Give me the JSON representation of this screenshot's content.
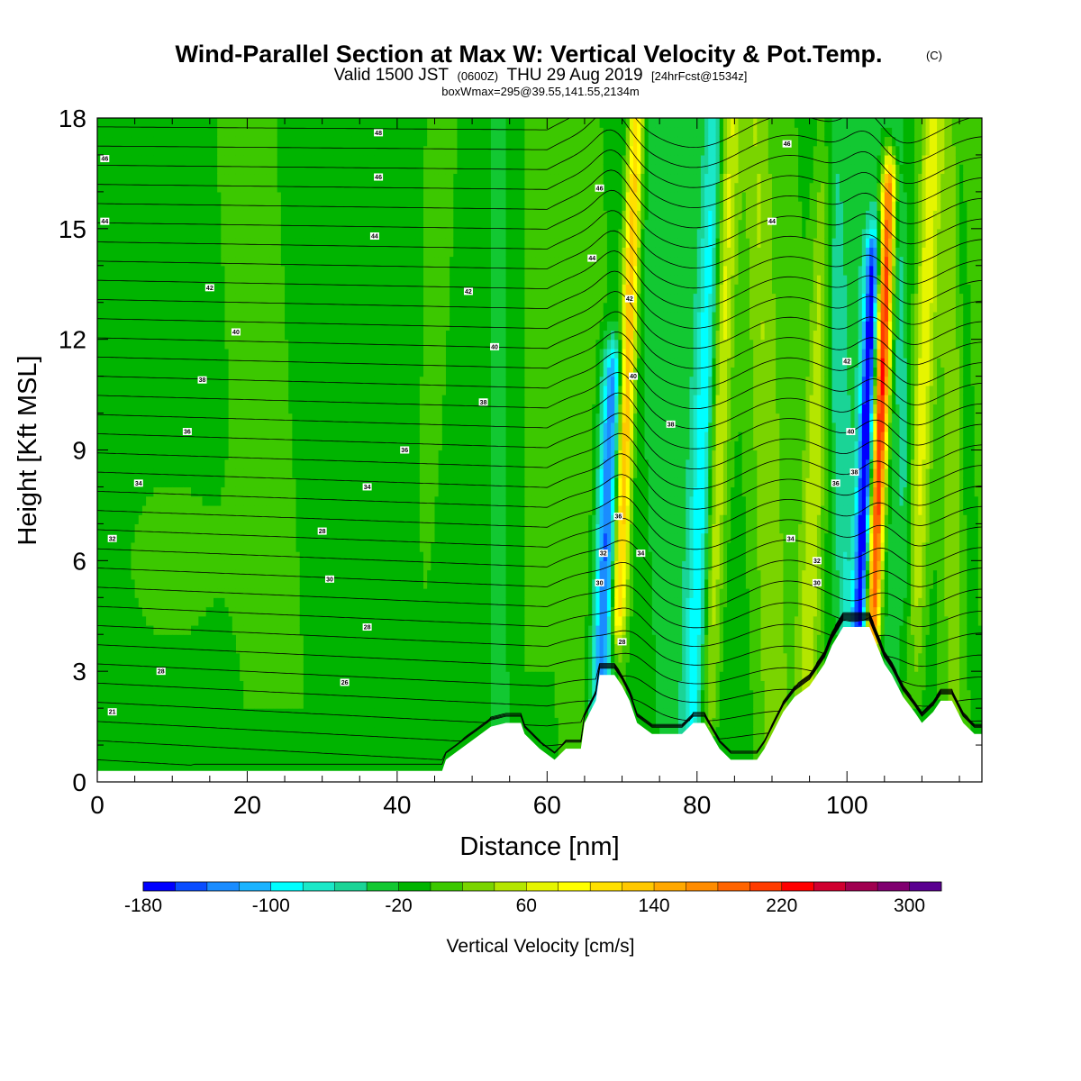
{
  "title": {
    "main": "Wind-Parallel Section at Max W: Vertical Velocity & Pot.Temp.",
    "copyright": "(C)",
    "valid_prefix": "Valid 1500 JST",
    "valid_utc": "(0600Z)",
    "valid_date": "THU 29 Aug 2019",
    "forecast": "[24hrFcst@1534z]",
    "box_info": "boxWmax=295@39.55,141.55,2134m"
  },
  "chart_data": {
    "type": "heatmap",
    "xlabel": "Distance [nm]",
    "ylabel": "Height [Kft MSL]",
    "xlim": [
      0,
      118
    ],
    "ylim": [
      0,
      18
    ],
    "x_ticks": [
      "0",
      "20",
      "40",
      "60",
      "80",
      "100"
    ],
    "y_ticks": [
      "0",
      "3",
      "6",
      "9",
      "12",
      "15",
      "18"
    ],
    "x_tick_values": [
      0,
      20,
      40,
      60,
      80,
      100
    ],
    "y_tick_values": [
      0,
      3,
      6,
      9,
      12,
      15,
      18
    ],
    "colorbar": {
      "title": "Vertical Velocity [cm/s]",
      "min": -180,
      "max": 320,
      "step": 20,
      "labels": [
        "-180",
        "-100",
        "-20",
        "60",
        "140",
        "220",
        "300"
      ],
      "label_values": [
        -180,
        -100,
        -20,
        60,
        140,
        220,
        300
      ],
      "colors": [
        "#0000ff",
        "#0a4dff",
        "#1a8cff",
        "#1ab3ff",
        "#00ffff",
        "#1ae8c8",
        "#1ad496",
        "#12c832",
        "#00b400",
        "#3cc800",
        "#7ad400",
        "#b4e600",
        "#e6f500",
        "#ffff00",
        "#ffe000",
        "#ffc800",
        "#ffa800",
        "#ff8c00",
        "#ff6400",
        "#ff3c00",
        "#ff0000",
        "#d00030",
        "#a00050",
        "#800070",
        "#5a0090"
      ]
    },
    "velocity_features": [
      {
        "x": 70.5,
        "peak": 160,
        "kind": "updraft",
        "from_km": 4.8,
        "to_km": 18
      },
      {
        "x": 68.5,
        "peak": -150,
        "kind": "downdraft",
        "from_km": 2.0,
        "to_km": 11
      },
      {
        "x": 83,
        "peak": 80,
        "kind": "updraft",
        "from_km": 2.0,
        "to_km": 18
      },
      {
        "x": 81,
        "peak": -80,
        "kind": "downdraft",
        "from_km": 2.0,
        "to_km": 18
      },
      {
        "x": 104.5,
        "peak": 260,
        "kind": "updraft",
        "from_km": 4.3,
        "to_km": 16
      },
      {
        "x": 102.7,
        "peak": -170,
        "kind": "downdraft",
        "from_km": 4.3,
        "to_km": 14
      },
      {
        "x": 96,
        "peak": 60,
        "kind": "updraft",
        "from_km": 3.0,
        "to_km": 18
      },
      {
        "x": 110,
        "peak": 80,
        "kind": "updraft",
        "from_km": 2.5,
        "to_km": 18
      }
    ],
    "terrain_kft": [
      [
        0,
        0.3
      ],
      [
        46,
        0.3
      ],
      [
        46.5,
        0.6
      ],
      [
        48.5,
        0.9
      ],
      [
        50.5,
        1.2
      ],
      [
        52.5,
        1.5
      ],
      [
        54.5,
        1.6
      ],
      [
        56.5,
        1.6
      ],
      [
        57,
        1.3
      ],
      [
        59,
        0.9
      ],
      [
        61,
        0.6
      ],
      [
        62.5,
        0.9
      ],
      [
        64.5,
        0.9
      ],
      [
        65,
        1.6
      ],
      [
        66.5,
        2.2
      ],
      [
        67,
        2.9
      ],
      [
        69,
        2.9
      ],
      [
        70,
        2.6
      ],
      [
        71,
        2.2
      ],
      [
        72,
        1.6
      ],
      [
        74,
        1.3
      ],
      [
        76,
        1.3
      ],
      [
        78,
        1.3
      ],
      [
        79.5,
        1.6
      ],
      [
        81,
        1.6
      ],
      [
        83,
        0.9
      ],
      [
        84.5,
        0.6
      ],
      [
        88,
        0.6
      ],
      [
        89,
        0.9
      ],
      [
        90,
        1.3
      ],
      [
        91.5,
        1.9
      ],
      [
        93,
        2.3
      ],
      [
        95,
        2.6
      ],
      [
        97,
        3.2
      ],
      [
        98,
        3.7
      ],
      [
        99.5,
        4.2
      ],
      [
        102,
        4.2
      ],
      [
        103,
        4.2
      ],
      [
        105,
        3.2
      ],
      [
        106,
        2.9
      ],
      [
        107.5,
        2.3
      ],
      [
        109,
        1.9
      ],
      [
        110,
        1.6
      ],
      [
        111.5,
        1.9
      ],
      [
        112.5,
        2.2
      ],
      [
        114,
        2.2
      ],
      [
        115.5,
        1.6
      ],
      [
        117,
        1.3
      ],
      [
        118,
        1.3
      ]
    ],
    "isentrope_labels": [
      {
        "text": "46",
        "x": 1,
        "y": 16.9
      },
      {
        "text": "44",
        "x": 1,
        "y": 15.2
      },
      {
        "text": "42",
        "x": 15,
        "y": 13.4
      },
      {
        "text": "40",
        "x": 18.5,
        "y": 12.2
      },
      {
        "text": "38",
        "x": 14,
        "y": 10.9
      },
      {
        "text": "36",
        "x": 12,
        "y": 9.5
      },
      {
        "text": "34",
        "x": 5.5,
        "y": 8.1
      },
      {
        "text": "32",
        "x": 2,
        "y": 6.6
      },
      {
        "text": "28",
        "x": 8.5,
        "y": 3.0
      },
      {
        "text": "21",
        "x": 2,
        "y": 1.9
      },
      {
        "text": "48",
        "x": 37.5,
        "y": 17.6
      },
      {
        "text": "46",
        "x": 37.5,
        "y": 16.4
      },
      {
        "text": "44",
        "x": 37,
        "y": 14.8
      },
      {
        "text": "42",
        "x": 49.5,
        "y": 13.3
      },
      {
        "text": "40",
        "x": 53,
        "y": 11.8
      },
      {
        "text": "38",
        "x": 51.5,
        "y": 10.3
      },
      {
        "text": "36",
        "x": 41,
        "y": 9.0
      },
      {
        "text": "34",
        "x": 36,
        "y": 8.0
      },
      {
        "text": "28",
        "x": 30,
        "y": 6.8
      },
      {
        "text": "30",
        "x": 31,
        "y": 5.5
      },
      {
        "text": "28",
        "x": 36,
        "y": 4.2
      },
      {
        "text": "26",
        "x": 33,
        "y": 2.7
      },
      {
        "text": "46",
        "x": 67,
        "y": 16.1
      },
      {
        "text": "44",
        "x": 66,
        "y": 14.2
      },
      {
        "text": "42",
        "x": 71,
        "y": 13.1
      },
      {
        "text": "40",
        "x": 71.5,
        "y": 11.0
      },
      {
        "text": "38",
        "x": 76.5,
        "y": 9.7
      },
      {
        "text": "36",
        "x": 69.5,
        "y": 7.2
      },
      {
        "text": "34",
        "x": 72.5,
        "y": 6.2
      },
      {
        "text": "32",
        "x": 67.5,
        "y": 6.2
      },
      {
        "text": "30",
        "x": 67,
        "y": 5.4
      },
      {
        "text": "28",
        "x": 70,
        "y": 3.8
      },
      {
        "text": "46",
        "x": 92,
        "y": 17.3
      },
      {
        "text": "44",
        "x": 90,
        "y": 15.2
      },
      {
        "text": "42",
        "x": 100,
        "y": 11.4
      },
      {
        "text": "40",
        "x": 100.5,
        "y": 9.5
      },
      {
        "text": "38",
        "x": 101,
        "y": 8.4
      },
      {
        "text": "36",
        "x": 98.5,
        "y": 8.1
      },
      {
        "text": "34",
        "x": 92.5,
        "y": 6.6
      },
      {
        "text": "32",
        "x": 96,
        "y": 6.0
      },
      {
        "text": "30",
        "x": 96,
        "y": 5.4
      }
    ]
  }
}
